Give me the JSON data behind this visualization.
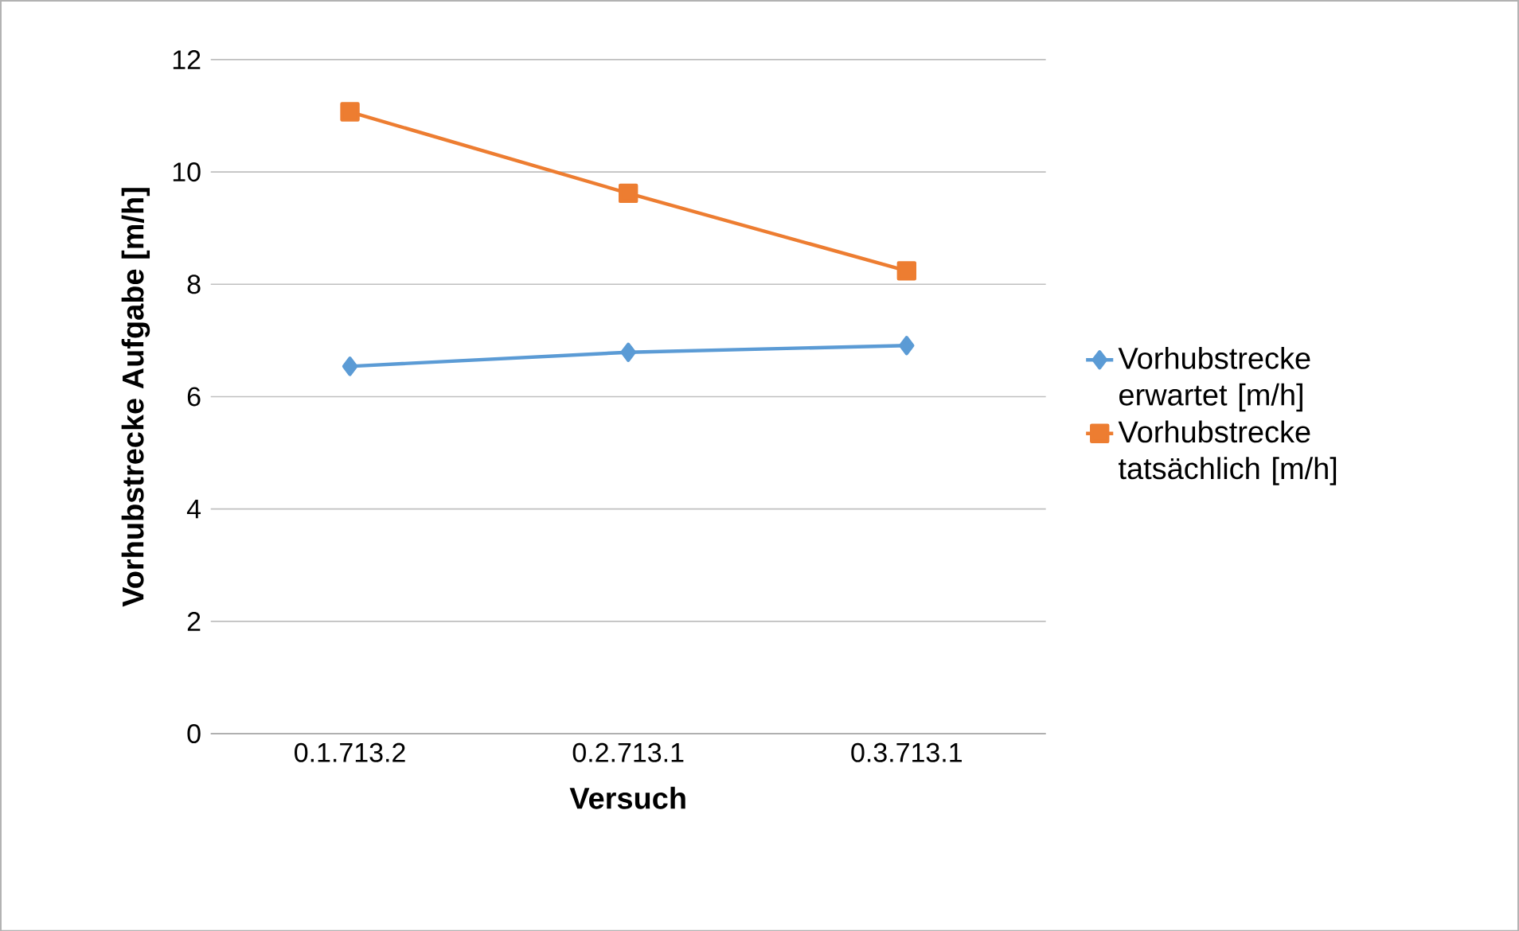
{
  "chart_data": {
    "type": "line",
    "xlabel": "Versuch",
    "ylabel": "Vorhubstrecke Aufgabe [m/h]",
    "categories": [
      "0.1.713.2",
      "0.2.713.1",
      "0.3.713.1"
    ],
    "series": [
      {
        "name": "Vorhubstrecke erwartet [m/h]",
        "color": "#5b9bd5",
        "marker": "diamond",
        "values": [
          6.54,
          6.79,
          6.91
        ]
      },
      {
        "name": "Vorhubstrecke tatsächlich [m/h]",
        "color": "#ed7d31",
        "marker": "square",
        "values": [
          11.07,
          9.62,
          8.24
        ]
      }
    ],
    "ylim": [
      0,
      12
    ],
    "yticks": [
      0,
      2,
      4,
      6,
      8,
      10,
      12
    ],
    "grid": "y",
    "legend": "right",
    "line_style": "solid"
  }
}
